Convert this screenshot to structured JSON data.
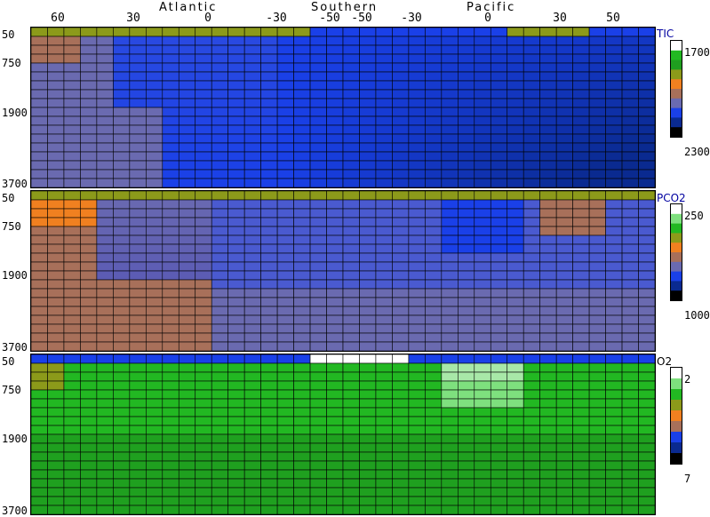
{
  "regions": [
    "Atlantic",
    "Southern",
    "Pacific"
  ],
  "lat_ticks": [
    "60",
    "30",
    "0",
    "-30",
    "-50",
    "-50",
    "-30",
    "0",
    "30",
    "50"
  ],
  "depth_ticks": [
    "50",
    "750",
    "1900",
    "3700"
  ],
  "chart_data": [
    {
      "type": "heatmap",
      "title": "TIC",
      "x_ticks": [
        "60",
        "30",
        "0",
        "-30",
        "-50",
        "-50",
        "-30",
        "0",
        "30",
        "50"
      ],
      "y_ticks": [
        "50",
        "750",
        "1900",
        "3700"
      ],
      "colorbar": {
        "labels": [
          "1700",
          "2300"
        ],
        "colors": [
          "#ffffff",
          "#22b822",
          "#1f9e1f",
          "#8c9a1a",
          "#f08020",
          "#a8705a",
          "#6a6ab0",
          "#1a40e8",
          "#0a2a90",
          "#000000"
        ]
      }
    },
    {
      "type": "heatmap",
      "title": "PCO2",
      "x_ticks": [
        "60",
        "30",
        "0",
        "-30",
        "-50",
        "-50",
        "-30",
        "0",
        "30",
        "50"
      ],
      "y_ticks": [
        "50",
        "750",
        "1900",
        "3700"
      ],
      "colorbar": {
        "labels": [
          "250",
          "1000"
        ],
        "colors": [
          "#ffffff",
          "#7ee07e",
          "#22b822",
          "#8c9a1a",
          "#f08020",
          "#a8705a",
          "#6a6ab0",
          "#1a40e8",
          "#0a2a90",
          "#000000"
        ]
      }
    },
    {
      "type": "heatmap",
      "title": "O2",
      "x_ticks": [
        "60",
        "30",
        "0",
        "-30",
        "-50",
        "-50",
        "-30",
        "0",
        "30",
        "50"
      ],
      "y_ticks": [
        "50",
        "750",
        "1900",
        "3700"
      ],
      "colorbar": {
        "labels": [
          "2",
          "7"
        ],
        "colors": [
          "#ffffff",
          "#7ee07e",
          "#22b822",
          "#8c9a1a",
          "#f08020",
          "#a8705a",
          "#1a40e8",
          "#0a2a90",
          "#000000"
        ]
      }
    }
  ]
}
